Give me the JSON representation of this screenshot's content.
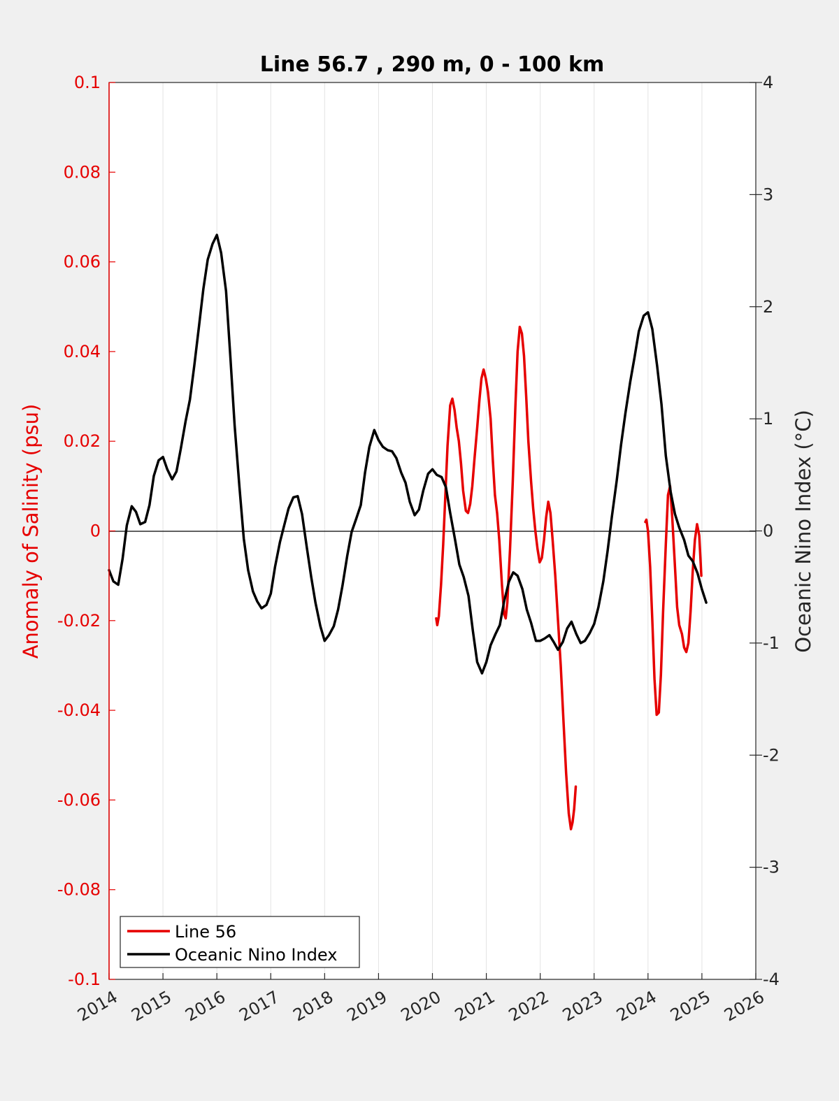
{
  "chart_data": {
    "type": "line",
    "title": "Line 56.7 , 290 m, 0 - 100 km",
    "xlabel": "",
    "x_ticks": [
      "2014",
      "2015",
      "2016",
      "2017",
      "2018",
      "2019",
      "2020",
      "2021",
      "2022",
      "2023",
      "2024",
      "2025",
      "2026"
    ],
    "xlim": [
      2014,
      2026
    ],
    "grid": "vertical",
    "left_axis": {
      "label": "Anomaly of Salinity (psu)",
      "ylim": [
        -0.1,
        0.1
      ],
      "ticks": [
        "0.1",
        "0.08",
        "0.06",
        "0.04",
        "0.02",
        "0",
        "-0.02",
        "-0.04",
        "-0.06",
        "-0.08",
        "-0.1"
      ],
      "color": "#e60000"
    },
    "right_axis": {
      "label": "Oceanic Nino Index (°C)",
      "ylim": [
        -4,
        4
      ],
      "ticks": [
        "4",
        "3",
        "2",
        "1",
        "0",
        "-1",
        "-2",
        "-3",
        "-4"
      ],
      "color": "#262626"
    },
    "legend_position": "bottom-left",
    "series": [
      {
        "name": "Line 56",
        "axis": "left",
        "color": "#e60000",
        "segments": [
          [
            [
              2020.07,
              -0.0195
            ],
            [
              2020.09,
              -0.021
            ],
            [
              2020.12,
              -0.019
            ],
            [
              2020.16,
              -0.012
            ],
            [
              2020.2,
              -0.003
            ],
            [
              2020.24,
              0.008
            ],
            [
              2020.28,
              0.019
            ],
            [
              2020.33,
              0.028
            ],
            [
              2020.37,
              0.0295
            ],
            [
              2020.41,
              0.027
            ],
            [
              2020.45,
              0.023
            ],
            [
              2020.49,
              0.02
            ],
            [
              2020.53,
              0.015
            ],
            [
              2020.57,
              0.009
            ],
            [
              2020.62,
              0.0045
            ],
            [
              2020.66,
              0.004
            ],
            [
              2020.7,
              0.006
            ],
            [
              2020.74,
              0.01
            ],
            [
              2020.78,
              0.016
            ],
            [
              2020.83,
              0.023
            ],
            [
              2020.87,
              0.029
            ],
            [
              2020.91,
              0.034
            ],
            [
              2020.95,
              0.036
            ],
            [
              2020.99,
              0.034
            ],
            [
              2021.03,
              0.031
            ],
            [
              2021.08,
              0.025
            ],
            [
              2021.12,
              0.016
            ],
            [
              2021.16,
              0.008
            ],
            [
              2021.2,
              0.004
            ],
            [
              2021.24,
              -0.002
            ],
            [
              2021.29,
              -0.012
            ],
            [
              2021.33,
              -0.0185
            ],
            [
              2021.36,
              -0.0195
            ],
            [
              2021.39,
              -0.016
            ],
            [
              2021.44,
              -0.004
            ],
            [
              2021.49,
              0.011
            ],
            [
              2021.54,
              0.028
            ],
            [
              2021.58,
              0.04
            ],
            [
              2021.62,
              0.0455
            ],
            [
              2021.66,
              0.044
            ],
            [
              2021.7,
              0.039
            ],
            [
              2021.74,
              0.03
            ],
            [
              2021.78,
              0.02
            ],
            [
              2021.83,
              0.011
            ],
            [
              2021.87,
              0.005
            ],
            [
              2021.91,
              0.0
            ],
            [
              2021.95,
              -0.004
            ],
            [
              2021.99,
              -0.007
            ],
            [
              2022.03,
              -0.006
            ],
            [
              2022.07,
              -0.002
            ],
            [
              2022.11,
              0.003
            ],
            [
              2022.15,
              0.0065
            ],
            [
              2022.19,
              0.004
            ],
            [
              2022.23,
              -0.002
            ],
            [
              2022.28,
              -0.01
            ],
            [
              2022.33,
              -0.02
            ],
            [
              2022.38,
              -0.03
            ],
            [
              2022.43,
              -0.042
            ],
            [
              2022.48,
              -0.054
            ],
            [
              2022.53,
              -0.063
            ],
            [
              2022.57,
              -0.0665
            ],
            [
              2022.6,
              -0.065
            ],
            [
              2022.63,
              -0.062
            ],
            [
              2022.66,
              -0.057
            ]
          ],
          [
            [
              2023.95,
              0.002
            ],
            [
              2023.97,
              0.0025
            ],
            [
              2024.0,
              0.0
            ],
            [
              2024.04,
              -0.008
            ],
            [
              2024.08,
              -0.02
            ],
            [
              2024.12,
              -0.033
            ],
            [
              2024.16,
              -0.041
            ],
            [
              2024.2,
              -0.0405
            ],
            [
              2024.24,
              -0.032
            ],
            [
              2024.28,
              -0.018
            ],
            [
              2024.33,
              -0.003
            ],
            [
              2024.37,
              0.008
            ],
            [
              2024.41,
              0.01
            ],
            [
              2024.45,
              0.003
            ],
            [
              2024.5,
              -0.008
            ],
            [
              2024.54,
              -0.017
            ],
            [
              2024.58,
              -0.021
            ],
            [
              2024.63,
              -0.023
            ],
            [
              2024.67,
              -0.026
            ],
            [
              2024.71,
              -0.027
            ],
            [
              2024.75,
              -0.025
            ],
            [
              2024.79,
              -0.018
            ],
            [
              2024.83,
              -0.009
            ],
            [
              2024.87,
              -0.002
            ],
            [
              2024.91,
              0.0015
            ],
            [
              2024.95,
              -0.001
            ],
            [
              2024.99,
              -0.01
            ]
          ]
        ]
      },
      {
        "name": "Oceanic Nino Index",
        "axis": "right",
        "color": "#000000",
        "points": [
          [
            2014.0,
            -0.35
          ],
          [
            2014.08,
            -0.45
          ],
          [
            2014.17,
            -0.48
          ],
          [
            2014.25,
            -0.25
          ],
          [
            2014.33,
            0.05
          ],
          [
            2014.42,
            0.22
          ],
          [
            2014.5,
            0.17
          ],
          [
            2014.58,
            0.06
          ],
          [
            2014.67,
            0.08
          ],
          [
            2014.75,
            0.23
          ],
          [
            2014.83,
            0.49
          ],
          [
            2014.92,
            0.63
          ],
          [
            2015.0,
            0.66
          ],
          [
            2015.08,
            0.55
          ],
          [
            2015.17,
            0.46
          ],
          [
            2015.25,
            0.53
          ],
          [
            2015.33,
            0.73
          ],
          [
            2015.42,
            0.98
          ],
          [
            2015.5,
            1.17
          ],
          [
            2015.58,
            1.47
          ],
          [
            2015.67,
            1.83
          ],
          [
            2015.75,
            2.16
          ],
          [
            2015.83,
            2.42
          ],
          [
            2015.92,
            2.56
          ],
          [
            2016.0,
            2.64
          ],
          [
            2016.08,
            2.48
          ],
          [
            2016.17,
            2.14
          ],
          [
            2016.25,
            1.56
          ],
          [
            2016.33,
            0.94
          ],
          [
            2016.42,
            0.39
          ],
          [
            2016.5,
            -0.07
          ],
          [
            2016.58,
            -0.35
          ],
          [
            2016.67,
            -0.54
          ],
          [
            2016.75,
            -0.63
          ],
          [
            2016.83,
            -0.69
          ],
          [
            2016.92,
            -0.66
          ],
          [
            2017.0,
            -0.56
          ],
          [
            2017.08,
            -0.32
          ],
          [
            2017.17,
            -0.1
          ],
          [
            2017.25,
            0.05
          ],
          [
            2017.33,
            0.2
          ],
          [
            2017.42,
            0.3
          ],
          [
            2017.5,
            0.31
          ],
          [
            2017.58,
            0.15
          ],
          [
            2017.67,
            -0.15
          ],
          [
            2017.75,
            -0.41
          ],
          [
            2017.83,
            -0.64
          ],
          [
            2017.92,
            -0.85
          ],
          [
            2018.0,
            -0.98
          ],
          [
            2018.08,
            -0.93
          ],
          [
            2018.17,
            -0.85
          ],
          [
            2018.25,
            -0.7
          ],
          [
            2018.33,
            -0.49
          ],
          [
            2018.42,
            -0.22
          ],
          [
            2018.5,
            -0.01
          ],
          [
            2018.58,
            0.1
          ],
          [
            2018.67,
            0.23
          ],
          [
            2018.75,
            0.52
          ],
          [
            2018.83,
            0.75
          ],
          [
            2018.92,
            0.9
          ],
          [
            2019.0,
            0.81
          ],
          [
            2019.08,
            0.75
          ],
          [
            2019.17,
            0.72
          ],
          [
            2019.25,
            0.71
          ],
          [
            2019.33,
            0.65
          ],
          [
            2019.42,
            0.52
          ],
          [
            2019.5,
            0.43
          ],
          [
            2019.58,
            0.26
          ],
          [
            2019.67,
            0.14
          ],
          [
            2019.75,
            0.19
          ],
          [
            2019.83,
            0.36
          ],
          [
            2019.92,
            0.51
          ],
          [
            2020.0,
            0.55
          ],
          [
            2020.08,
            0.5
          ],
          [
            2020.17,
            0.48
          ],
          [
            2020.25,
            0.39
          ],
          [
            2020.33,
            0.16
          ],
          [
            2020.42,
            -0.08
          ],
          [
            2020.5,
            -0.3
          ],
          [
            2020.58,
            -0.41
          ],
          [
            2020.67,
            -0.58
          ],
          [
            2020.75,
            -0.89
          ],
          [
            2020.83,
            -1.17
          ],
          [
            2020.92,
            -1.27
          ],
          [
            2021.0,
            -1.17
          ],
          [
            2021.08,
            -1.02
          ],
          [
            2021.17,
            -0.92
          ],
          [
            2021.25,
            -0.84
          ],
          [
            2021.33,
            -0.63
          ],
          [
            2021.42,
            -0.45
          ],
          [
            2021.5,
            -0.37
          ],
          [
            2021.58,
            -0.4
          ],
          [
            2021.67,
            -0.52
          ],
          [
            2021.75,
            -0.7
          ],
          [
            2021.83,
            -0.82
          ],
          [
            2021.92,
            -0.98
          ],
          [
            2022.0,
            -0.98
          ],
          [
            2022.08,
            -0.96
          ],
          [
            2022.17,
            -0.93
          ],
          [
            2022.25,
            -0.99
          ],
          [
            2022.33,
            -1.06
          ],
          [
            2022.42,
            -0.99
          ],
          [
            2022.5,
            -0.87
          ],
          [
            2022.58,
            -0.81
          ],
          [
            2022.67,
            -0.92
          ],
          [
            2022.75,
            -1.0
          ],
          [
            2022.83,
            -0.98
          ],
          [
            2022.92,
            -0.91
          ],
          [
            2023.0,
            -0.83
          ],
          [
            2023.08,
            -0.68
          ],
          [
            2023.17,
            -0.45
          ],
          [
            2023.25,
            -0.18
          ],
          [
            2023.33,
            0.13
          ],
          [
            2023.42,
            0.45
          ],
          [
            2023.5,
            0.77
          ],
          [
            2023.58,
            1.05
          ],
          [
            2023.67,
            1.33
          ],
          [
            2023.75,
            1.55
          ],
          [
            2023.83,
            1.78
          ],
          [
            2023.92,
            1.92
          ],
          [
            2024.0,
            1.95
          ],
          [
            2024.08,
            1.8
          ],
          [
            2024.17,
            1.47
          ],
          [
            2024.25,
            1.13
          ],
          [
            2024.33,
            0.67
          ],
          [
            2024.42,
            0.35
          ],
          [
            2024.5,
            0.15
          ],
          [
            2024.58,
            0.03
          ],
          [
            2024.67,
            -0.08
          ],
          [
            2024.75,
            -0.22
          ],
          [
            2024.83,
            -0.27
          ],
          [
            2024.92,
            -0.38
          ],
          [
            2025.0,
            -0.52
          ],
          [
            2025.08,
            -0.64
          ]
        ]
      }
    ]
  }
}
